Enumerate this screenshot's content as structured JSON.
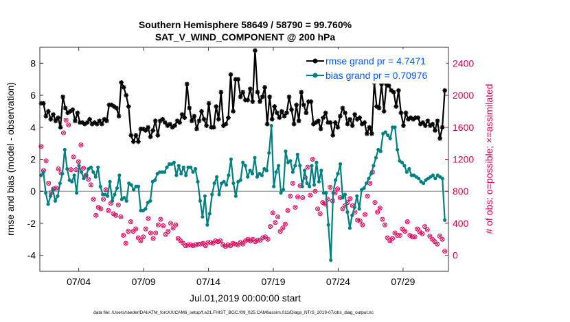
{
  "chart_data": {
    "type": "line",
    "title": "Southern Hemisphere 58649 / 58790 = 99.760%",
    "subtitle": "SAT_V_WIND_COMPONENT @ 200 hPa",
    "xlabel": "Jul.01,2019 00:00:00 start",
    "ylabel_left": "rmse and bias (model - observation)",
    "ylabel_right": "# of obs: o=possible; ×=assimilated",
    "xlim": [
      0,
      31.5
    ],
    "ylim_left": [
      -5,
      9
    ],
    "ylim_right": [
      -200,
      2600
    ],
    "x_ticks": [
      {
        "value": 3,
        "label": "07/04"
      },
      {
        "value": 8,
        "label": "07/09"
      },
      {
        "value": 13,
        "label": "07/14"
      },
      {
        "value": 18,
        "label": "07/19"
      },
      {
        "value": 23,
        "label": "07/24"
      },
      {
        "value": 28,
        "label": "07/29"
      }
    ],
    "y_ticks_left": [
      {
        "value": -4,
        "label": "-4"
      },
      {
        "value": -2,
        "label": "-2"
      },
      {
        "value": 0,
        "label": "0"
      },
      {
        "value": 2,
        "label": "2"
      },
      {
        "value": 4,
        "label": "4"
      },
      {
        "value": 6,
        "label": "6"
      },
      {
        "value": 8,
        "label": "8"
      }
    ],
    "y_ticks_right": [
      {
        "value": 0,
        "label": "0"
      },
      {
        "value": 400,
        "label": "400"
      },
      {
        "value": 800,
        "label": "800"
      },
      {
        "value": 1200,
        "label": "1200"
      },
      {
        "value": 1600,
        "label": "1600"
      },
      {
        "value": 2000,
        "label": "2000"
      },
      {
        "value": 2400,
        "label": "2400"
      }
    ],
    "series": [
      {
        "name": "rmse grand pr = 4.7471",
        "axis": "left",
        "color": "#000000",
        "values": [
          5.5,
          5.5,
          4.7,
          5.0,
          4.5,
          4.8,
          4.4,
          4.6,
          4.0,
          5.9,
          5.2,
          4.9,
          5.0,
          5.1,
          4.4,
          4.9,
          4.3,
          4.3,
          4.2,
          4.3,
          4.5,
          4.2,
          4.3,
          4.2,
          4.4,
          4.2,
          4.5,
          4.4,
          5.4,
          5.4,
          5.3,
          5.2,
          4.7,
          6.8,
          6.5,
          6.0,
          5.3,
          3.5,
          3.1,
          3.5,
          3.1,
          3.9,
          3.9,
          3.8,
          4.0,
          3.4,
          3.8,
          4.4,
          3.5,
          4.4,
          4.5,
          4.3,
          4.1,
          4.2,
          4.0,
          4.1,
          4.4,
          4.3,
          4.8,
          4.6,
          6.7,
          5.2,
          4.4,
          4.7,
          3.9,
          4.4,
          5.0,
          4.5,
          4.1,
          5.5,
          4.0,
          4.0,
          5.3,
          4.5,
          6.2,
          4.1,
          4.2,
          4.6,
          7.3,
          5.0,
          7.0,
          7.0,
          5.9,
          6.2,
          5.7,
          5.7,
          6.4,
          5.6,
          8.8,
          6.2,
          5.6,
          5.9,
          6.5,
          4.2,
          5.9,
          4.5,
          5.3,
          4.9,
          4.6,
          5.0,
          4.7,
          4.9,
          5.9,
          5.1,
          4.2,
          5.4,
          4.4,
          6.2,
          5.4,
          4.9,
          5.6,
          5.6,
          4.2,
          4.3,
          4.4,
          3.9,
          4.6,
          4.9,
          4.3,
          4.3,
          3.5,
          4.3,
          4.0,
          4.7,
          5.2,
          4.9,
          4.2,
          4.5,
          4.1,
          4.8,
          4.5,
          4.6,
          4.2,
          4.3,
          3.6,
          4.0,
          3.6,
          6.8,
          5.3,
          5.2,
          6.7,
          5.0,
          6.7,
          6.6,
          6.3,
          6.2,
          5.3,
          6.3,
          4.9,
          4.1,
          4.9,
          4.5,
          4.6,
          4.5,
          4.6,
          4.6,
          4.2,
          4.3,
          4.1,
          4.4,
          4.1,
          4.2,
          3.8,
          4.4,
          3.3,
          4.0,
          6.3
        ]
      },
      {
        "name": "bias grand pr = 0.70976",
        "axis": "left",
        "color": "#008080",
        "values": [
          1.0,
          1.2,
          -0.1,
          -0.8,
          -0.3,
          0.1,
          -0.6,
          -0.3,
          0.5,
          1.1,
          2.6,
          1.4,
          0.7,
          0.6,
          1.0,
          -0.1,
          1.6,
          1.2,
          0.8,
          1.0,
          1.4,
          1.5,
          1.2,
          0.9,
          1.5,
          0.3,
          -0.2,
          -0.2,
          -0.3,
          0.6,
          -0.6,
          -0.2,
          0.2,
          1.0,
          -0.5,
          -0.4,
          -0.6,
          0.5,
          0.4,
          0.1,
          0.3,
          0.3,
          -1.2,
          -1.2,
          -1.1,
          -0.7,
          -0.6,
          0.6,
          0.7,
          1.1,
          1.2,
          1.2,
          1.2,
          1.5,
          1.7,
          1.7,
          1.8,
          1.0,
          1.6,
          1.1,
          1.5,
          1.0,
          1.5,
          1.5,
          1.2,
          1.4,
          0.6,
          -0.6,
          -1.6,
          -0.3,
          -2.1,
          -1.4,
          -0.2,
          0.5,
          0.9,
          -0.2,
          0.5,
          0.6,
          0.4,
          1.0,
          2.0,
          0.5,
          -0.3,
          0.6,
          0.7,
          1.8,
          1.6,
          0.9,
          1.3,
          1.1,
          2.1,
          0.9,
          1.1,
          1.0,
          1.4,
          1.3,
          2.4,
          4.1,
          0.3,
          1.2,
          1.6,
          -0.1,
          0.1,
          2.5,
          1.8,
          1.9,
          1.2,
          1.6,
          2.3,
          1.6,
          0.3,
          1.3,
          0.5,
          0.3,
          1.6,
          0.4,
          1.8,
          0.6,
          1.3,
          -0.1,
          -0.1,
          -2.1,
          -4.3,
          -0.1,
          0.7,
          1.1,
          1.7,
          -0.4,
          -0.2,
          -1.3,
          -2.3,
          -1.5,
          -1.0,
          -0.3,
          -1.1,
          0.1,
          0.2,
          0.5,
          0.8,
          1.1,
          1.6,
          2.1,
          2.6,
          2.5,
          3.6,
          3.7,
          3.5,
          3.3,
          4.0,
          4.0,
          2.6,
          1.9,
          1.8,
          1.6,
          1.2,
          1.4,
          1.0,
          1.0,
          0.9,
          0.8,
          0.6,
          0.5,
          0.7,
          0.8,
          0.9,
          1.0,
          0.8,
          1.0,
          0.9,
          0.8,
          -1.8
        ]
      },
      {
        "name": "obs possible",
        "axis": "right",
        "color": "#e0005a",
        "marker": "o",
        "values": [
          1360,
          1060,
          1180,
          900,
          780,
          830,
          840,
          1080,
          1030,
          1530,
          1690,
          1630,
          1070,
          1230,
          1070,
          1170,
          1380,
          1090,
          1000,
          950,
          880,
          700,
          500,
          600,
          580,
          700,
          820,
          560,
          650,
          520,
          500,
          630,
          480,
          250,
          150,
          300,
          420,
          300,
          330,
          220,
          180,
          230,
          330,
          460,
          280,
          210,
          280,
          380,
          450,
          370,
          260,
          300,
          400,
          340,
          380,
          210,
          180,
          150,
          120,
          130,
          130,
          120,
          130,
          140,
          140,
          150,
          120,
          160,
          160,
          150,
          180,
          170,
          180,
          130,
          110,
          130,
          120,
          150,
          140,
          130,
          160,
          140,
          180,
          200,
          180,
          200,
          170,
          190,
          190,
          220,
          230,
          200,
          360,
          530,
          410,
          480,
          300,
          340,
          390,
          560,
          740,
          900,
          600,
          730,
          870,
          720,
          970,
          1100,
          750,
          1200,
          800,
          580,
          520,
          660,
          640,
          700,
          850,
          680,
          780,
          830,
          720,
          580,
          620,
          660,
          710,
          620,
          540,
          440,
          430,
          380,
          510,
          740,
          900,
          1040,
          660,
          540,
          590,
          450,
          380,
          220,
          180,
          210,
          280,
          250,
          250,
          330,
          300,
          420,
          250,
          230,
          230,
          330,
          290,
          270,
          360,
          320,
          240,
          200,
          170,
          140,
          240,
          200,
          50
        ]
      },
      {
        "name": "obs assimilated",
        "axis": "right",
        "color": "#e0005a",
        "marker": "x",
        "values": [
          1360,
          1060,
          1180,
          900,
          780,
          830,
          840,
          1080,
          1030,
          1530,
          1690,
          1630,
          1070,
          1230,
          1070,
          1170,
          1380,
          1090,
          1000,
          950,
          880,
          700,
          500,
          600,
          580,
          700,
          820,
          560,
          650,
          520,
          500,
          630,
          480,
          250,
          150,
          300,
          420,
          300,
          330,
          220,
          180,
          230,
          330,
          460,
          280,
          210,
          280,
          380,
          450,
          370,
          260,
          300,
          400,
          340,
          380,
          210,
          180,
          150,
          120,
          130,
          130,
          120,
          130,
          140,
          140,
          150,
          120,
          160,
          160,
          150,
          180,
          170,
          180,
          130,
          110,
          130,
          120,
          150,
          140,
          130,
          160,
          140,
          180,
          200,
          180,
          200,
          170,
          190,
          190,
          220,
          230,
          200,
          360,
          530,
          410,
          480,
          300,
          340,
          390,
          560,
          740,
          900,
          600,
          730,
          870,
          720,
          970,
          1100,
          750,
          1200,
          800,
          580,
          520,
          660,
          640,
          700,
          850,
          680,
          780,
          830,
          720,
          580,
          620,
          660,
          710,
          620,
          540,
          440,
          430,
          380,
          510,
          740,
          900,
          1040,
          660,
          540,
          590,
          450,
          380,
          220,
          180,
          210,
          280,
          250,
          250,
          330,
          300,
          420,
          250,
          230,
          230,
          330,
          290,
          270,
          360,
          320,
          240,
          200,
          170,
          140,
          240,
          200,
          50
        ]
      }
    ],
    "zero_line": {
      "value": 0,
      "color": "#aaaaaa"
    },
    "legend": {
      "placement": "top-right",
      "entries": [
        "rmse grand pr = 4.7471",
        "bias grand pr = 0.70976"
      ],
      "text_color": "#0055ff"
    },
    "right_axis_color": "#d0004f",
    "footnote": "data file: /Users/raeder/DAI/ATM_forcXX/CAM6_setup/f.e21.FHIST_BGC.f09_025.CAM6assim.011/Diags_NTrS_2019-07/obs_diag_output.nc"
  }
}
